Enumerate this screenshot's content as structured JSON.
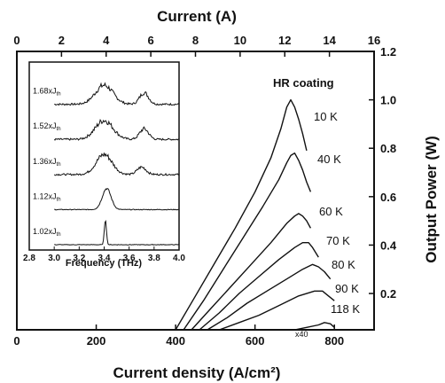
{
  "chart_data": [
    {
      "type": "line",
      "title": "",
      "xlabel": "Current density (A/cm²)",
      "x_top_label": "Current (A)",
      "ylabel": "Output Power (W)",
      "xlim": [
        0,
        900
      ],
      "x_top_lim": [
        0,
        16
      ],
      "ylim": [
        0.05,
        1.2
      ],
      "x_ticks": [
        "0",
        "200",
        "400",
        "600",
        "800"
      ],
      "x_top_ticks": [
        "0",
        "2",
        "4",
        "6",
        "8",
        "10",
        "12",
        "14",
        "16"
      ],
      "y_ticks": [
        "0.2",
        "0.4",
        "0.6",
        "0.8",
        "1.0",
        "1.2"
      ],
      "annotation": "HR coating",
      "series": [
        {
          "name": "10 K",
          "x": [
            400,
            450,
            500,
            550,
            600,
            640,
            665,
            680,
            690,
            700,
            710,
            720,
            730
          ],
          "y": [
            0.05,
            0.19,
            0.33,
            0.47,
            0.62,
            0.76,
            0.88,
            0.97,
            1.0,
            0.97,
            0.92,
            0.86,
            0.79
          ]
        },
        {
          "name": "40 K",
          "x": [
            420,
            470,
            520,
            570,
            620,
            660,
            680,
            690,
            700,
            710,
            720,
            730,
            740
          ],
          "y": [
            0.05,
            0.17,
            0.3,
            0.43,
            0.56,
            0.67,
            0.74,
            0.77,
            0.78,
            0.75,
            0.71,
            0.66,
            0.62
          ]
        },
        {
          "name": "60 K",
          "x": [
            440,
            490,
            540,
            590,
            640,
            680,
            700,
            710,
            720,
            730,
            740
          ],
          "y": [
            0.05,
            0.14,
            0.23,
            0.32,
            0.41,
            0.49,
            0.52,
            0.53,
            0.52,
            0.5,
            0.47
          ]
        },
        {
          "name": "70 K",
          "x": [
            460,
            510,
            560,
            610,
            660,
            700,
            720,
            735,
            745,
            760
          ],
          "y": [
            0.05,
            0.12,
            0.2,
            0.27,
            0.34,
            0.39,
            0.41,
            0.41,
            0.39,
            0.35
          ]
        },
        {
          "name": "80 K",
          "x": [
            480,
            530,
            580,
            630,
            680,
            720,
            745,
            760,
            775,
            790
          ],
          "y": [
            0.05,
            0.1,
            0.16,
            0.21,
            0.26,
            0.3,
            0.32,
            0.31,
            0.29,
            0.26
          ]
        },
        {
          "name": "90 K",
          "x": [
            510,
            560,
            610,
            660,
            710,
            750,
            770,
            785,
            800
          ],
          "y": [
            0.05,
            0.08,
            0.11,
            0.15,
            0.19,
            0.21,
            0.21,
            0.19,
            0.17
          ]
        },
        {
          "name": "118 K",
          "label_extra": "x40",
          "x": [
            700,
            730,
            760,
            775,
            790,
            800
          ],
          "y": [
            0.05,
            0.06,
            0.07,
            0.08,
            0.075,
            0.06
          ]
        }
      ]
    },
    {
      "type": "line",
      "title": "",
      "xlabel": "Frequency (THz)",
      "xlim": [
        2.8,
        4.0
      ],
      "x_ticks": [
        "2.8",
        "3.0",
        "3.2",
        "3.4",
        "3.6",
        "3.8",
        "4.0"
      ],
      "series": [
        {
          "name": "1.68xJth",
          "label_main": "1.68xJ",
          "label_sub": "th",
          "peaks": [
            {
              "f": 3.4,
              "h": 0.9,
              "w": 0.1
            },
            {
              "f": 3.72,
              "h": 0.55,
              "w": 0.05
            }
          ],
          "noise": 0.22
        },
        {
          "name": "1.52xJth",
          "label_main": "1.52xJ",
          "label_sub": "th",
          "peaks": [
            {
              "f": 3.4,
              "h": 0.9,
              "w": 0.1
            },
            {
              "f": 3.72,
              "h": 0.5,
              "w": 0.05
            }
          ],
          "noise": 0.22
        },
        {
          "name": "1.36xJth",
          "label_main": "1.36xJ",
          "label_sub": "th",
          "peaks": [
            {
              "f": 3.4,
              "h": 0.95,
              "w": 0.09
            },
            {
              "f": 3.7,
              "h": 0.35,
              "w": 0.05
            }
          ],
          "noise": 0.2
        },
        {
          "name": "1.12xJth",
          "label_main": "1.12xJ",
          "label_sub": "th",
          "peaks": [
            {
              "f": 3.42,
              "h": 1.0,
              "w": 0.05
            }
          ],
          "noise": 0.08
        },
        {
          "name": "1.02xJth",
          "label_main": "1.02xJ",
          "label_sub": "th",
          "peaks": [
            {
              "f": 3.41,
              "h": 1.2,
              "w": 0.012
            }
          ],
          "noise": 0.06
        }
      ]
    }
  ]
}
